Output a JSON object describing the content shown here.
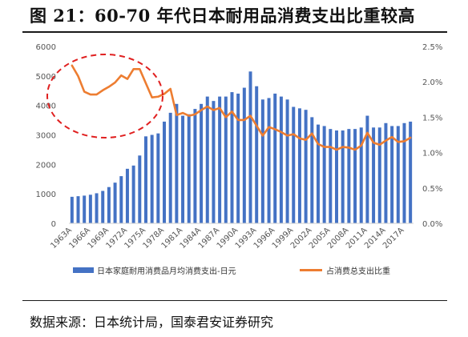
{
  "title": "图 21：60-70 年代日本耐用品消费支出比重较高",
  "source": "数据来源：日本统计局，国泰君安证券研究",
  "chart_data": {
    "type": "bar+line",
    "title": "图 21：60-70 年代日本耐用品消费支出比重较高",
    "x": [
      "1963A",
      "1964A",
      "1965A",
      "1966A",
      "1967A",
      "1968A",
      "1969A",
      "1970A",
      "1971A",
      "1972A",
      "1973A",
      "1974A",
      "1975A",
      "1976A",
      "1977A",
      "1978A",
      "1979A",
      "1980A",
      "1981A",
      "1982A",
      "1983A",
      "1984A",
      "1985A",
      "1986A",
      "1987A",
      "1988A",
      "1989A",
      "1990A",
      "1991A",
      "1992A",
      "1993A",
      "1994A",
      "1995A",
      "1996A",
      "1997A",
      "1998A",
      "1999A",
      "2000A",
      "2001A",
      "2002A",
      "2003A",
      "2004A",
      "2005A",
      "2006A",
      "2007A",
      "2008A",
      "2009A",
      "2010A",
      "2011A",
      "2012A",
      "2013A",
      "2014A",
      "2015A",
      "2016A",
      "2017A",
      "2018A"
    ],
    "x_tick_labels": [
      "1963A",
      "1966A",
      "1969A",
      "1972A",
      "1975A",
      "1978A",
      "1981A",
      "1984A",
      "1987A",
      "1990A",
      "1993A",
      "1996A",
      "1999A",
      "2002A",
      "2005A",
      "2008A",
      "2011A",
      "2014A",
      "2017A"
    ],
    "series": [
      {
        "name": "日本家庭耐用消费品月均消费支出-日元",
        "type": "bar",
        "axis": "left",
        "color": "#4472c4",
        "values": [
          900,
          920,
          940,
          970,
          1020,
          1100,
          1230,
          1380,
          1600,
          1850,
          1960,
          2300,
          2950,
          3000,
          3050,
          3450,
          3750,
          4050,
          3650,
          3700,
          3880,
          4050,
          4300,
          4150,
          4300,
          4300,
          4450,
          4400,
          4600,
          5150,
          4650,
          4200,
          4250,
          4400,
          4300,
          4200,
          3950,
          3900,
          3850,
          3600,
          3350,
          3300,
          3200,
          3150,
          3150,
          3200,
          3200,
          3250,
          3650,
          3250,
          3250,
          3400,
          3300,
          3300,
          3400,
          3450
        ]
      },
      {
        "name": "占消费总支出比重",
        "type": "line",
        "axis": "right",
        "color": "#ed7d31",
        "values": [
          2.23,
          2.08,
          1.86,
          1.82,
          1.82,
          1.88,
          1.93,
          1.99,
          2.09,
          2.04,
          2.18,
          2.18,
          1.98,
          1.78,
          1.79,
          1.83,
          1.9,
          1.53,
          1.56,
          1.52,
          1.54,
          1.6,
          1.65,
          1.6,
          1.63,
          1.5,
          1.58,
          1.46,
          1.46,
          1.52,
          1.38,
          1.24,
          1.36,
          1.33,
          1.29,
          1.24,
          1.26,
          1.2,
          1.18,
          1.27,
          1.12,
          1.08,
          1.08,
          1.04,
          1.08,
          1.07,
          1.04,
          1.1,
          1.28,
          1.14,
          1.11,
          1.17,
          1.22,
          1.15,
          1.16,
          1.21
        ]
      }
    ],
    "y_left": {
      "min": 0,
      "max": 6000,
      "ticks": [
        "0",
        "1000",
        "2000",
        "3000",
        "4000",
        "5000",
        "6000"
      ]
    },
    "y_right": {
      "min": 0,
      "max": 2.5,
      "ticks": [
        "0.0%",
        "0.5%",
        "1.0%",
        "1.5%",
        "2.0%",
        "2.5%"
      ]
    },
    "grid": false,
    "legend_position": "bottom",
    "annotation": {
      "shape": "dashed-ellipse",
      "color": "#e02020",
      "covers": "1963A-1977A"
    }
  }
}
